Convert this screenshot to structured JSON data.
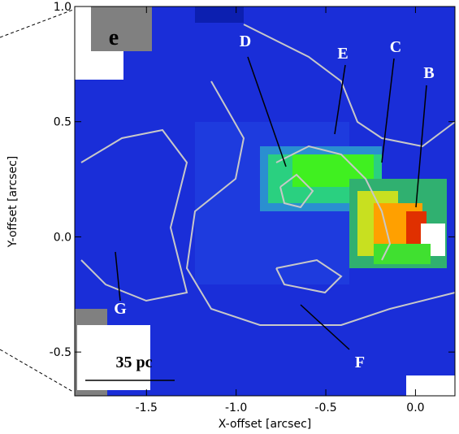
{
  "chart_data": {
    "type": "image",
    "xlabel": "X-offset [arcsec]",
    "ylabel": "Y-offset [arcsec]",
    "xlim": [
      -1.9,
      0.22
    ],
    "ylim": [
      -0.69,
      1.0
    ],
    "xticks": [
      -1.5,
      {
        "value": -1.0,
        "label": "-1.0"
      },
      -0.5,
      {
        "value": 0,
        "label": "0.0"
      }
    ],
    "yticks": [
      -0.5,
      {
        "value": 0,
        "label": "0.0"
      },
      0.5,
      {
        "value": 1.0,
        "label": "1.0"
      }
    ],
    "panel_label": "e",
    "scale_label": "35 pc",
    "annotations": [
      "B",
      "C",
      "D",
      "E",
      "F",
      "G"
    ]
  }
}
